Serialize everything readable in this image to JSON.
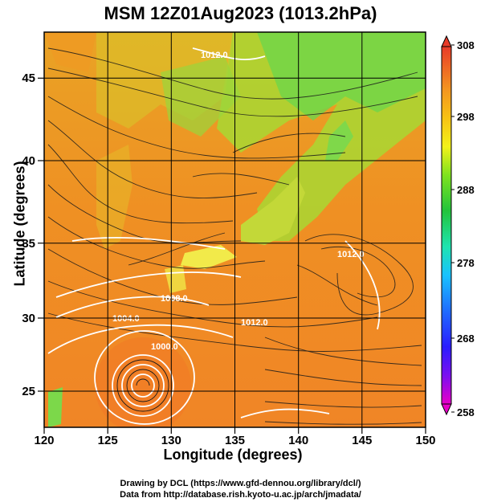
{
  "title": "MSM 12Z01Aug2023 (1013.2hPa)",
  "axes": {
    "xlabel": "Longitude (degrees)",
    "ylabel": "Latitude  (degrees)",
    "x_ticks": [
      "120",
      "125",
      "130",
      "135",
      "140",
      "145",
      "150"
    ],
    "y_ticks": [
      "25",
      "30",
      "35",
      "40",
      "45"
    ],
    "xlim": [
      120,
      150
    ],
    "ylim": [
      22.4,
      47.6
    ]
  },
  "colorbar": {
    "ticks": [
      "308",
      "298",
      "288",
      "278",
      "268",
      "258"
    ],
    "range": [
      258,
      308
    ],
    "colors": [
      "#e800c8",
      "#3a1cff",
      "#1f6cff",
      "#19c2ff",
      "#1ee4b0",
      "#22c43c",
      "#7ee21e",
      "#f3f21a",
      "#f7c214",
      "#f49520",
      "#ef6226",
      "#e83a28"
    ]
  },
  "contour_labels": [
    "1012.0",
    "1008.0",
    "1004.0",
    "1000.0",
    "1012.0",
    "1012.0"
  ],
  "credits": {
    "line1": "Drawing by DCL (https://www.gfd-dennou.org/library/dcl/)",
    "line2": "Data from http://database.rish.kyoto-u.ac.jp/arch/jmadata/"
  }
}
